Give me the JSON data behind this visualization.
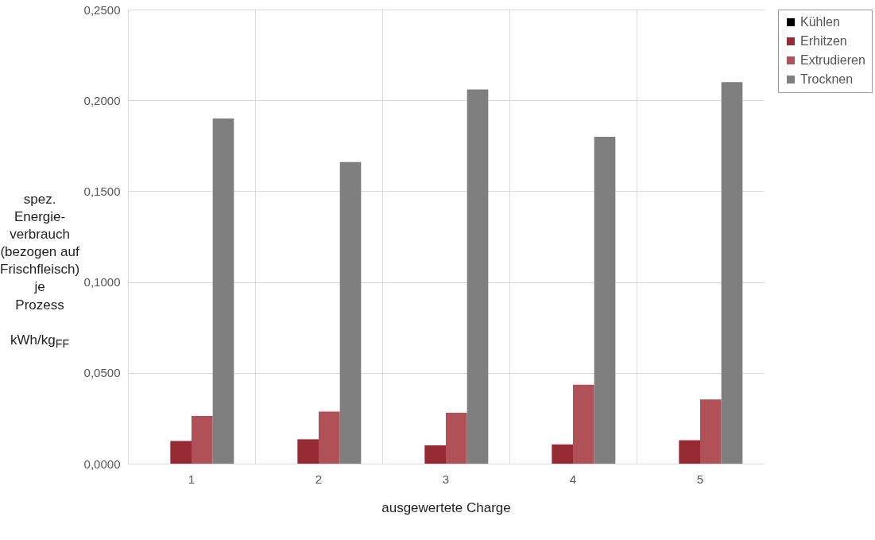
{
  "chart_data": {
    "type": "bar",
    "xlabel": "ausgewertete Charge",
    "ylabel": "spez. Energie-\nverbrauch\n(bezogen auf\nFrischfleisch) je\nProzess\n\nkWh/kg$_{FF}$",
    "categories": [
      "1",
      "2",
      "3",
      "4",
      "5"
    ],
    "series": [
      {
        "name": "Kühlen",
        "color": "#000000",
        "values": [
          0,
          0,
          0,
          0,
          0
        ]
      },
      {
        "name": "Erhitzen",
        "color": "#952a33",
        "values": [
          0.0125,
          0.0134,
          0.0101,
          0.0106,
          0.0129
        ]
      },
      {
        "name": "Extrudieren",
        "color": "#b05157",
        "values": [
          0.0263,
          0.0287,
          0.028,
          0.0435,
          0.0353
        ]
      },
      {
        "name": "Trocknen",
        "color": "#7f7f7f",
        "values": [
          0.19,
          0.166,
          0.206,
          0.18,
          0.21
        ]
      }
    ],
    "ylim": [
      0,
      0.25
    ],
    "yticks": [
      {
        "value": 0,
        "label": "0,0000"
      },
      {
        "value": 0.05,
        "label": "0,0500"
      },
      {
        "value": 0.1,
        "label": "0,1000"
      },
      {
        "value": 0.15,
        "label": "0,1500"
      },
      {
        "value": 0.2,
        "label": "0,2000"
      },
      {
        "value": 0.25,
        "label": "0,2500"
      }
    ],
    "grid": true,
    "legend": "top right"
  }
}
